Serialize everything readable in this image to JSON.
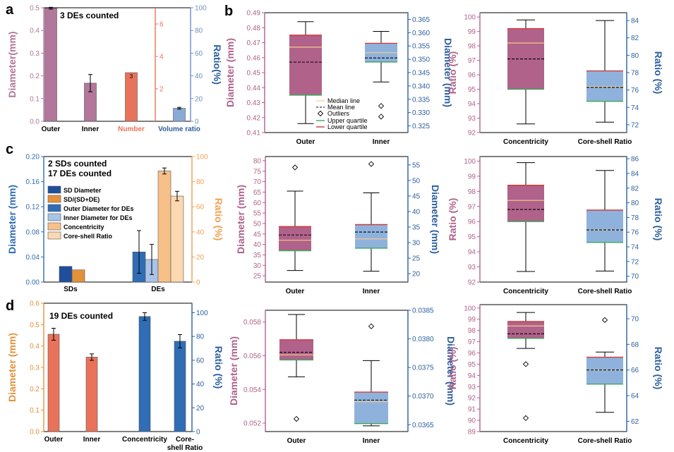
{
  "colors": {
    "mauve": "#b2779a",
    "salmon": "#e8735a",
    "steel": "#6f8fbf",
    "navy": "#1f4e9c",
    "deepblue": "#2f6db5",
    "ratio_blue": "#2c5f9e",
    "orange": "#f0a050",
    "orange_dark": "#e3923a",
    "orange_light": "#f7c089",
    "peach": "#fbd8b0",
    "lightblue": "#a9c4e8",
    "box_mauve": "#b0628a",
    "box_blue": "#8fb2dd",
    "median": "#f7c98b",
    "upper": "#3aa85a",
    "lower": "#d23a3a"
  },
  "panel_letters": {
    "a": "a",
    "b": "b",
    "c": "c",
    "d": "d"
  },
  "chart_data": [
    {
      "id": "a",
      "type": "bar",
      "annotation": "3 DEs counted",
      "categories": [
        "Outer",
        "Inner",
        "Number",
        "Volume ratio"
      ],
      "ylabel_left": "Diameter(mm)",
      "ylabel_mid": "",
      "ylabel_right": "Ratio(%)",
      "ylim_left": [
        0.0,
        0.5
      ],
      "ylim_mid": [
        0,
        7
      ],
      "ylim_right": [
        0,
        100
      ],
      "yticks_left": [
        "0.0",
        "0.1",
        "0.2",
        "0.3",
        "0.4",
        "0.5"
      ],
      "yticks_mid": [
        "2",
        "4",
        "6"
      ],
      "yticks_right": [
        "0",
        "20",
        "40",
        "60",
        "80",
        "100"
      ],
      "series": [
        {
          "axis": "left",
          "category": "Outer",
          "value": 0.498,
          "err": 0.004
        },
        {
          "axis": "left",
          "category": "Inner",
          "value": 0.168,
          "err": 0.038
        },
        {
          "axis": "mid",
          "category": "Number",
          "value": 3,
          "err": 0,
          "label": "3"
        },
        {
          "axis": "right",
          "category": "Volume ratio",
          "value": 11.5,
          "err": 0.8
        }
      ]
    },
    {
      "id": "b1",
      "type": "box",
      "categories": [
        "Outer",
        "Inner"
      ],
      "ylabel_left": "Diameter (mm)",
      "ylabel_right": "Diameter (mm)",
      "ylim_left": [
        0.41,
        0.49
      ],
      "ylim_right": [
        0.3225,
        0.3675
      ],
      "yticks_left": [
        "0.41",
        "0.42",
        "0.43",
        "0.44",
        "0.45",
        "0.46",
        "0.47",
        "0.48",
        "0.49"
      ],
      "yticks_right": [
        "0.325",
        "0.330",
        "0.335",
        "0.340",
        "0.345",
        "0.350",
        "0.355",
        "0.360",
        "0.365"
      ],
      "boxes": [
        {
          "category": "Outer",
          "axis": "left",
          "min": 0.416,
          "q1": 0.435,
          "median": 0.467,
          "mean": 0.457,
          "q3": 0.475,
          "max": 0.484,
          "outliers": []
        },
        {
          "category": "Inner",
          "axis": "right",
          "min": 0.3415,
          "q1": 0.349,
          "median": 0.3525,
          "mean": 0.3505,
          "q3": 0.356,
          "max": 0.3605,
          "outliers": [
            0.3325,
            0.3285
          ]
        }
      ],
      "legend": [
        "Median line",
        "Mean line",
        "Outliers",
        "Upper quartile",
        "Lower quartile"
      ]
    },
    {
      "id": "b2",
      "type": "box",
      "categories": [
        "Concentricity",
        "Core-shell Ratio"
      ],
      "ylabel_left": "Ratio (%)",
      "ylabel_right": "Ratio (%)",
      "ylim_left": [
        92,
        100.3
      ],
      "ylim_right": [
        71.1,
        84.9
      ],
      "yticks_left": [
        "92",
        "93",
        "94",
        "95",
        "96",
        "97",
        "98",
        "99",
        "100"
      ],
      "yticks_right": [
        "72",
        "74",
        "76",
        "78",
        "80",
        "82",
        "84"
      ],
      "boxes": [
        {
          "category": "Concentricity",
          "axis": "left",
          "min": 92.6,
          "q1": 95.0,
          "median": 98.2,
          "mean": 97.1,
          "q3": 99.2,
          "max": 99.8,
          "outliers": []
        },
        {
          "category": "Core-shell Ratio",
          "axis": "right",
          "min": 72.3,
          "q1": 74.7,
          "median": 76.4,
          "mean": 76.3,
          "q3": 78.2,
          "max": 84.0,
          "outliers": []
        }
      ]
    },
    {
      "id": "c",
      "type": "bar",
      "annotation": [
        "2 SDs counted",
        "17 DEs counted"
      ],
      "categories": [
        "SDs",
        "DEs"
      ],
      "ylabel_left": "Diameter (mm)",
      "ylabel_right": "Ratio (%)",
      "ylim_left": [
        0,
        0.2
      ],
      "ylim_right": [
        0,
        100
      ],
      "yticks_left": [
        "0.00",
        "0.04",
        "0.08",
        "0.12",
        "0.16",
        "0.20"
      ],
      "yticks_right": [
        "0",
        "20",
        "40",
        "60",
        "80",
        "100"
      ],
      "series": [
        {
          "name": "SD Diameter",
          "axis": "left",
          "values": [
            0.025,
            null
          ],
          "err": [
            0,
            0
          ]
        },
        {
          "name": "SD/(SD+DE)",
          "axis": "right",
          "values": [
            9.7,
            null
          ],
          "err": [
            0,
            0
          ]
        },
        {
          "name": "Outer Diameter for DEs",
          "axis": "left",
          "values": [
            null,
            0.048
          ],
          "err": [
            0,
            0.034
          ]
        },
        {
          "name": "Inner Diameter for DEs",
          "axis": "left",
          "values": [
            null,
            0.036
          ],
          "err": [
            0,
            0.024
          ]
        },
        {
          "name": "Concentricity",
          "axis": "right",
          "values": [
            null,
            88.5
          ],
          "err": [
            0,
            2.4
          ]
        },
        {
          "name": "Core-shell Ratio",
          "axis": "right",
          "values": [
            null,
            68.5
          ],
          "err": [
            0,
            3.8
          ]
        }
      ]
    },
    {
      "id": "c2",
      "type": "box",
      "categories": [
        "Outer",
        "Inner"
      ],
      "ylabel_left": "Diameter (mm)",
      "ylabel_right": "Diameter (mm)",
      "ylim_left": [
        22,
        82
      ],
      "ylim_right": [
        17.3,
        57.7
      ],
      "yticks_left": [
        "25",
        "30",
        "35",
        "40",
        "45",
        "50",
        "55",
        "60",
        "65",
        "70",
        "75",
        "80"
      ],
      "yticks_right": [
        "20",
        "25",
        "30",
        "35",
        "40",
        "45",
        "50",
        "55"
      ],
      "boxes": [
        {
          "category": "Outer",
          "axis": "left",
          "min": 27.5,
          "q1": 37.0,
          "median": 42.0,
          "mean": 44.5,
          "q3": 48.5,
          "max": 65.5,
          "outliers": [
            76.8
          ]
        },
        {
          "category": "Inner",
          "axis": "right",
          "min": 20.8,
          "q1": 28.2,
          "median": 31.2,
          "mean": 33.4,
          "q3": 35.8,
          "max": 46.0,
          "outliers": [
            55.3
          ]
        }
      ]
    },
    {
      "id": "c3",
      "type": "box",
      "categories": [
        "Concentricity",
        "Core-shell Ratio"
      ],
      "ylabel_left": "Ratio (%)",
      "ylabel_right": "Ratio (%)",
      "ylim_left": [
        92,
        100.3
      ],
      "ylim_right": [
        69.2,
        86.3
      ],
      "yticks_left": [
        "92",
        "93",
        "94",
        "95",
        "96",
        "97",
        "98",
        "99",
        "100"
      ],
      "yticks_right": [
        "70",
        "72",
        "74",
        "76",
        "78",
        "80",
        "82",
        "84",
        "86"
      ],
      "boxes": [
        {
          "category": "Concentricity",
          "axis": "left",
          "min": 92.7,
          "q1": 96.0,
          "median": 97.4,
          "mean": 96.8,
          "q3": 98.4,
          "max": 99.9,
          "outliers": []
        },
        {
          "category": "Core-shell Ratio",
          "axis": "right",
          "min": 70.7,
          "q1": 74.6,
          "median": 76.3,
          "mean": 76.3,
          "q3": 79.0,
          "max": 84.4,
          "outliers": []
        }
      ]
    },
    {
      "id": "d",
      "type": "bar",
      "annotation": "19 DEs counted",
      "categories": [
        "Outer",
        "Inner",
        "Concentricity",
        "Core-shell Ratio"
      ],
      "ylabel_left": "Diameter (mm)",
      "ylabel_right": "Ratio (%)",
      "ylim_left": [
        0,
        0.6
      ],
      "ylim_right": [
        0,
        108
      ],
      "yticks_left": [
        "0.0",
        "0.1",
        "0.2",
        "0.3",
        "0.4",
        "0.5",
        "0.6"
      ],
      "yticks_right": [
        "0",
        "20",
        "40",
        "60",
        "80",
        "100"
      ],
      "series": [
        {
          "axis": "left",
          "category": "Outer",
          "value": 0.455,
          "err": 0.028
        },
        {
          "axis": "left",
          "category": "Inner",
          "value": 0.348,
          "err": 0.015
        },
        {
          "axis": "right",
          "category": "Concentricity",
          "value": 96.8,
          "err": 3.2
        },
        {
          "axis": "right",
          "category": "Core-shell Ratio",
          "value": 76.0,
          "err": 5.6
        }
      ]
    },
    {
      "id": "d2",
      "type": "box",
      "categories": [
        "Outer",
        "Inner"
      ],
      "ylabel_left": "Diameter (mm)",
      "ylabel_right": "Diameter (mm)",
      "ylim_left": [
        0.0515,
        0.0587
      ],
      "ylim_right": [
        0.03638,
        0.0385
      ],
      "yticks_left": [
        "0.052",
        "0.054",
        "0.056",
        "0.058"
      ],
      "yticks_right": [
        "0.0365",
        "0.0370",
        "0.0375",
        "0.0380",
        "0.0385"
      ],
      "boxes": [
        {
          "category": "Outer",
          "axis": "left",
          "min": 0.05475,
          "q1": 0.05575,
          "median": 0.05605,
          "mean": 0.0562,
          "q3": 0.05695,
          "max": 0.05845,
          "outliers": [
            0.05225
          ]
        },
        {
          "category": "Inner",
          "axis": "right",
          "min": 0.03648,
          "q1": 0.03652,
          "median": 0.0369,
          "mean": 0.03693,
          "q3": 0.03707,
          "max": 0.03762,
          "outliers": [
            0.03822
          ]
        }
      ]
    },
    {
      "id": "d3",
      "type": "box",
      "categories": [
        "Concentricity",
        "Core-shell Ratio"
      ],
      "ylabel_left": "Ratio (%)",
      "ylabel_right": "Ratio (%)",
      "ylim_left": [
        89,
        100.3
      ],
      "ylim_right": [
        61.2,
        71.1
      ],
      "yticks_left": [
        "89",
        "90",
        "91",
        "92",
        "93",
        "94",
        "95",
        "96",
        "97",
        "98",
        "99",
        "100"
      ],
      "yticks_right": [
        "62",
        "64",
        "66",
        "68",
        "70"
      ],
      "boxes": [
        {
          "category": "Concentricity",
          "axis": "left",
          "min": 96.4,
          "q1": 97.3,
          "median": 98.4,
          "mean": 97.7,
          "q3": 98.8,
          "max": 99.6,
          "outliers": [
            95.0,
            90.2
          ]
        },
        {
          "category": "Core-shell Ratio",
          "axis": "right",
          "min": 62.7,
          "q1": 64.9,
          "median": 66.0,
          "mean": 66.0,
          "q3": 67.0,
          "max": 67.4,
          "outliers": [
            69.9
          ]
        }
      ]
    }
  ]
}
